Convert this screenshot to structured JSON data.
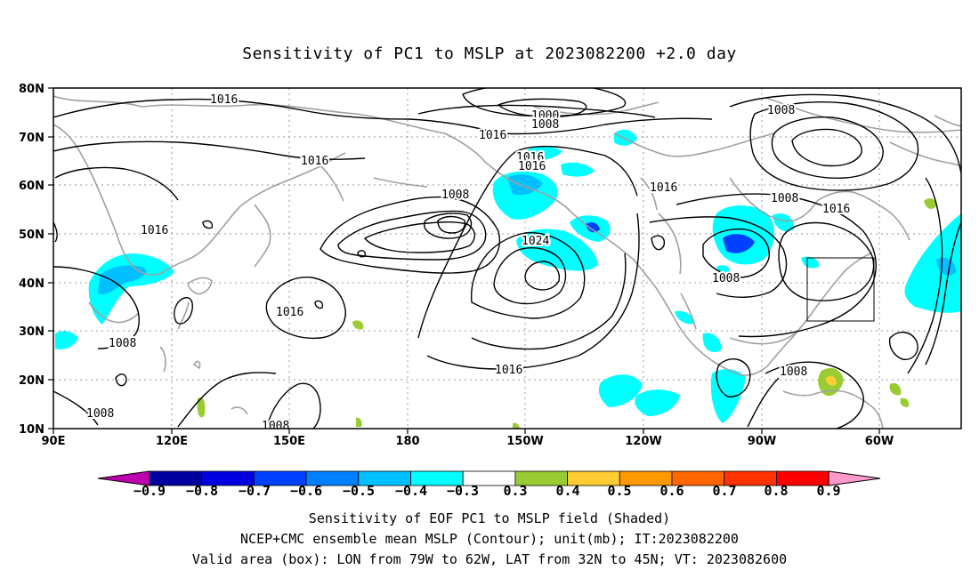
{
  "title": "Sensitivity of PC1 to MSLP at 2023082200 +2.0 day",
  "y_axis_labels": [
    "80N",
    "70N",
    "60N",
    "50N",
    "40N",
    "30N",
    "20N",
    "10N"
  ],
  "x_axis_labels": [
    "90E",
    "120E",
    "150E",
    "180",
    "150W",
    "120W",
    "90W",
    "60W"
  ],
  "contour_labels": [
    "1016",
    "1000",
    "1008",
    "1016",
    "1008",
    "1016",
    "1016",
    "1008",
    "1016",
    "1024",
    "1016",
    "1016",
    "1008",
    "1016",
    "1008",
    "1016",
    "1008",
    "1008",
    "1008",
    "1016",
    "1008"
  ],
  "colorbar": {
    "ticks": [
      "−0.9",
      "−0.8",
      "−0.7",
      "−0.6",
      "−0.5",
      "−0.4",
      "−0.3",
      "0.3",
      "0.4",
      "0.5",
      "0.6",
      "0.7",
      "0.8",
      "0.9"
    ],
    "colors": [
      "#c000b0",
      "#0000a0",
      "#0000e0",
      "#0040ff",
      "#0080ff",
      "#00c0ff",
      "#00ffff",
      "#ffffff",
      "#99cc33",
      "#ffcc33",
      "#ff9900",
      "#ff6600",
      "#ff3300",
      "#ff0000",
      "#ff99cc"
    ]
  },
  "captions": {
    "line1": "Sensitivity of EOF PC1 to MSLP field (Shaded)",
    "line2": "NCEP+CMC ensemble mean MSLP (Contour); unit(mb); IT:2023082200",
    "line3": "Valid area (box): LON from 79W to 62W, LAT from 32N to 45N; VT: 2023082600"
  }
}
